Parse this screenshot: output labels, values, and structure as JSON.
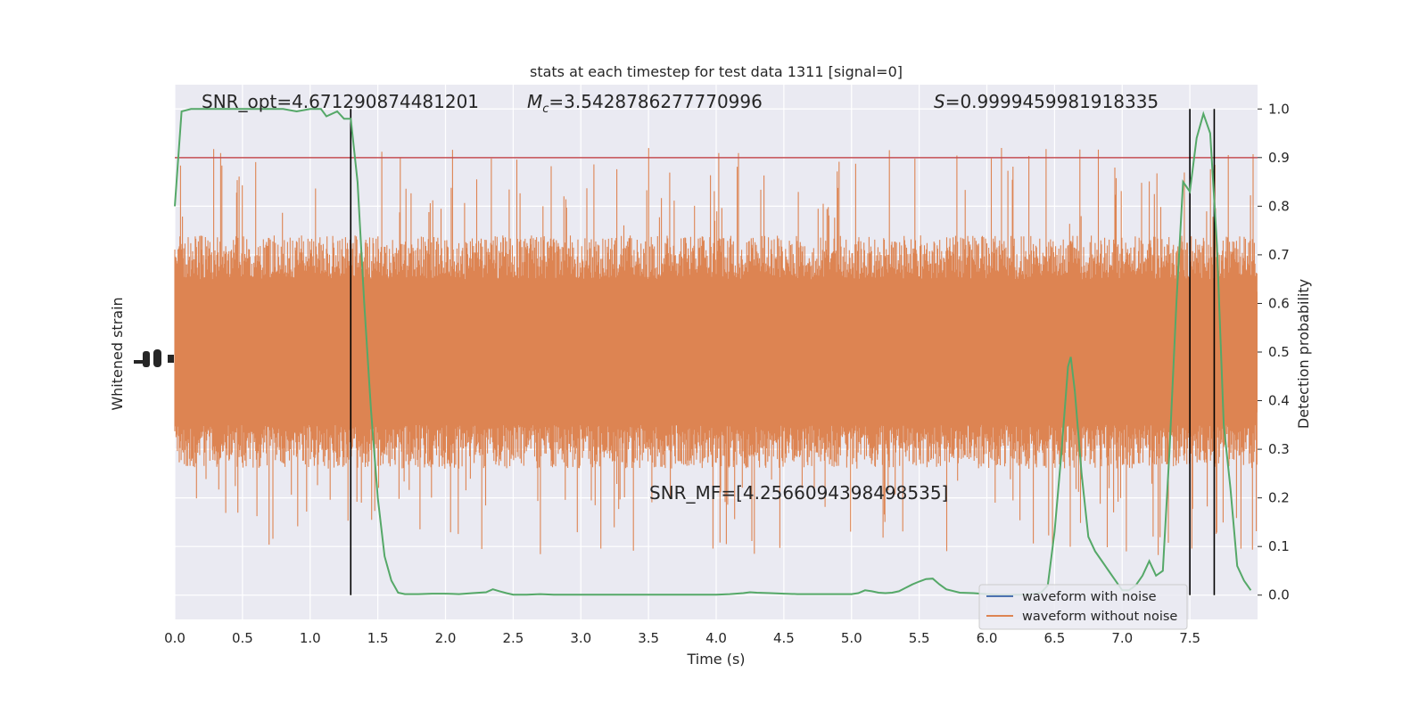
{
  "chart_data": {
    "type": "line",
    "title": "stats at each timestep for test data 1311 [signal=0]",
    "xlabel": "Time (s)",
    "ylabel_left": "Whitened strain",
    "ylabel_right": "Detection probability",
    "xlim": [
      0,
      8
    ],
    "ylim_right": [
      -0.05,
      1.05
    ],
    "x_ticks": [
      0.0,
      0.5,
      1.0,
      1.5,
      2.0,
      2.5,
      3.0,
      3.5,
      4.0,
      4.5,
      5.0,
      5.5,
      6.0,
      6.5,
      7.0,
      7.5
    ],
    "x_tick_labels": [
      "0.0",
      "0.5",
      "1.0",
      "1.5",
      "2.0",
      "2.5",
      "3.0",
      "3.5",
      "4.0",
      "4.5",
      "5.0",
      "5.5",
      "6.0",
      "6.5",
      "7.0",
      "7.5"
    ],
    "y_ticks_right": [
      0.0,
      0.1,
      0.2,
      0.3,
      0.4,
      0.5,
      0.6,
      0.7,
      0.8,
      0.9,
      1.0
    ],
    "y_tick_labels_right": [
      "0.0",
      "0.1",
      "0.2",
      "0.3",
      "0.4",
      "0.5",
      "0.6",
      "0.7",
      "0.8",
      "0.9",
      "1.0"
    ],
    "grid": true,
    "legend_placement": "lower-right",
    "threshold": 0.9,
    "vertical_markers": [
      1.3,
      7.5,
      7.68
    ],
    "annotations": {
      "snr_opt": "SNR_opt=4.671290874481201",
      "mc_symbol": "M",
      "mc_sub": "c",
      "mc_value": "=3.5428786277770996",
      "s_symbol": "S",
      "s_value": "=0.9999459981918335",
      "snr_mf": "SNR_MF=[4.2566094398498535]"
    },
    "series": [
      {
        "name": "waveform with noise",
        "color": "#4c72b0",
        "kind": "noise"
      },
      {
        "name": "waveform without noise",
        "color": "#dd8452",
        "kind": "noise",
        "band_center": 0.5,
        "band_typical": [
          0.3,
          0.7
        ],
        "band_extreme": [
          0.0,
          1.0
        ]
      },
      {
        "name": "",
        "color": "#55a868",
        "kind": "probability",
        "x": [
          0.0,
          0.05,
          0.12,
          0.2,
          0.3,
          0.4,
          0.5,
          0.6,
          0.7,
          0.8,
          0.9,
          1.0,
          1.08,
          1.12,
          1.2,
          1.25,
          1.3,
          1.35,
          1.4,
          1.45,
          1.5,
          1.55,
          1.6,
          1.65,
          1.7,
          1.8,
          1.9,
          2.0,
          2.1,
          2.2,
          2.3,
          2.35,
          2.4,
          2.45,
          2.5,
          2.6,
          2.7,
          2.8,
          2.9,
          3.0,
          3.2,
          3.5,
          3.8,
          4.0,
          4.1,
          4.2,
          4.25,
          4.3,
          4.4,
          4.5,
          4.6,
          4.7,
          4.8,
          4.9,
          5.0,
          5.05,
          5.1,
          5.15,
          5.2,
          5.25,
          5.3,
          5.35,
          5.4,
          5.45,
          5.5,
          5.55,
          5.6,
          5.65,
          5.7,
          5.8,
          5.9,
          6.0,
          6.1,
          6.2,
          6.3,
          6.4,
          6.45,
          6.5,
          6.55,
          6.6,
          6.62,
          6.65,
          6.7,
          6.75,
          6.8,
          6.85,
          6.9,
          6.95,
          7.0,
          7.05,
          7.1,
          7.15,
          7.2,
          7.25,
          7.3,
          7.35,
          7.4,
          7.45,
          7.5,
          7.55,
          7.6,
          7.65,
          7.7,
          7.75,
          7.8,
          7.85,
          7.9,
          7.95
        ],
        "y": [
          0.8,
          0.995,
          1.0,
          1.0,
          1.0,
          1.0,
          1.0,
          1.0,
          1.0,
          1.0,
          0.995,
          1.0,
          1.0,
          0.985,
          0.995,
          0.98,
          0.98,
          0.85,
          0.6,
          0.38,
          0.2,
          0.08,
          0.03,
          0.005,
          0.002,
          0.002,
          0.003,
          0.003,
          0.002,
          0.004,
          0.006,
          0.012,
          0.008,
          0.004,
          0.001,
          0.001,
          0.002,
          0.001,
          0.001,
          0.001,
          0.001,
          0.001,
          0.001,
          0.001,
          0.002,
          0.004,
          0.006,
          0.005,
          0.004,
          0.003,
          0.002,
          0.002,
          0.002,
          0.002,
          0.002,
          0.004,
          0.01,
          0.008,
          0.005,
          0.004,
          0.005,
          0.008,
          0.015,
          0.022,
          0.028,
          0.033,
          0.034,
          0.022,
          0.012,
          0.005,
          0.004,
          0.002,
          0.001,
          0.001,
          0.001,
          0.005,
          0.02,
          0.13,
          0.29,
          0.47,
          0.49,
          0.42,
          0.25,
          0.12,
          0.09,
          0.07,
          0.05,
          0.03,
          0.01,
          0.01,
          0.02,
          0.04,
          0.07,
          0.04,
          0.05,
          0.3,
          0.6,
          0.85,
          0.83,
          0.94,
          0.99,
          0.95,
          0.72,
          0.35,
          0.22,
          0.06,
          0.03,
          0.01
        ]
      }
    ]
  }
}
